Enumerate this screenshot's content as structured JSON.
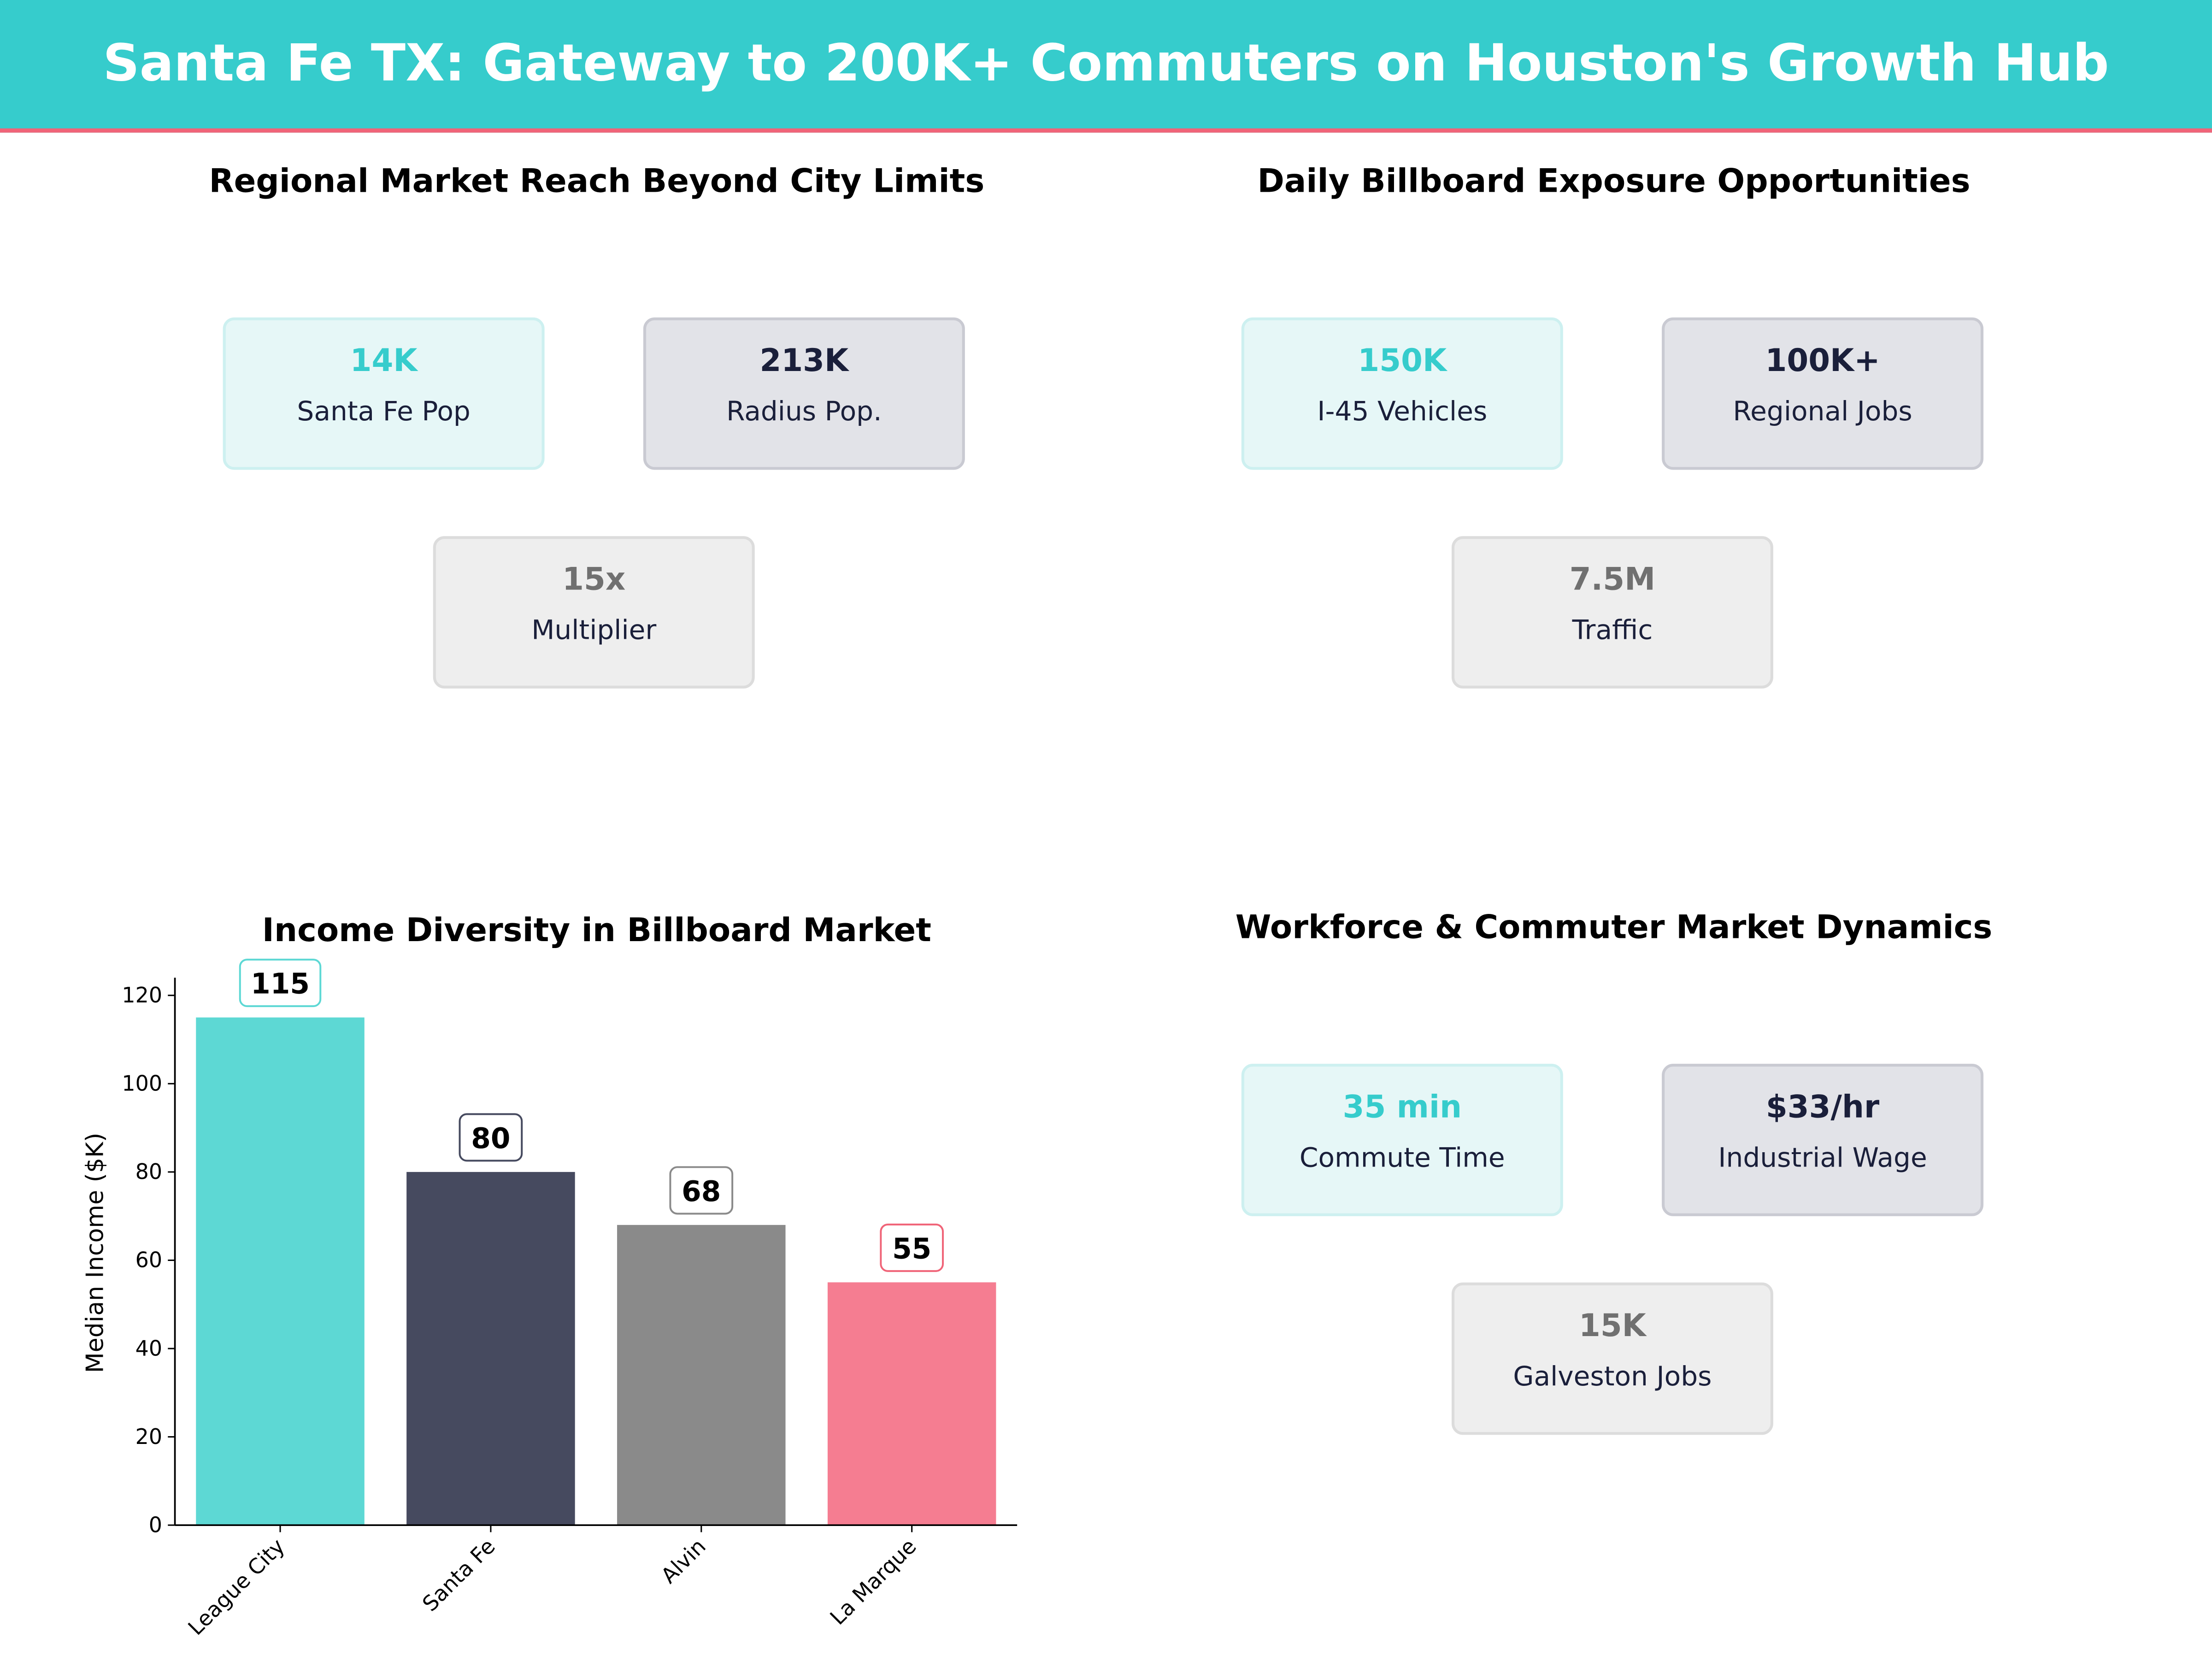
{
  "header": {
    "title": "Santa Fe TX: Gateway to 200K+ Commuters on Houston's Growth Hub"
  },
  "colors": {
    "banner": "#36cccc",
    "accent_line": "#f06478",
    "teal": "#5dd8d4",
    "navy": "#464a5f",
    "gray": "#8a8a8a",
    "pink": "#f57d91"
  },
  "panels": [
    {
      "title": "Regional Market Reach Beyond City Limits",
      "cards": [
        {
          "value": "14K",
          "label": "Santa Fe Pop"
        },
        {
          "value": "213K",
          "label": "Radius Pop."
        },
        {
          "value": "15x",
          "label": "Multiplier"
        }
      ]
    },
    {
      "title": "Daily Billboard Exposure Opportunities",
      "cards": [
        {
          "value": "150K",
          "label": "I-45 Vehicles"
        },
        {
          "value": "100K+",
          "label": "Regional Jobs"
        },
        {
          "value": "7.5M",
          "label": "Traffic"
        }
      ]
    },
    {
      "title": "Workforce & Commuter Market Dynamics",
      "cards": [
        {
          "value": "35 min",
          "label": "Commute Time"
        },
        {
          "value": "$33/hr",
          "label": "Industrial Wage"
        },
        {
          "value": "15K",
          "label": "Galveston Jobs"
        }
      ]
    }
  ],
  "chart_data": {
    "type": "bar",
    "title": "Income Diversity in Billboard Market",
    "xlabel": "",
    "ylabel": "Median Income ($K)",
    "categories": [
      "League City",
      "Santa Fe",
      "Alvin",
      "La Marque"
    ],
    "values": [
      115,
      80,
      68,
      55
    ],
    "value_labels": [
      "115",
      "80",
      "68",
      "55"
    ],
    "bar_colors": [
      "#5dd8d4",
      "#464a5f",
      "#8a8a8a",
      "#f57d91"
    ],
    "label_border_colors": [
      "#5dd8d4",
      "#464a5f",
      "#8a8a8a",
      "#f06478"
    ],
    "ylim": [
      0,
      124
    ],
    "yticks": [
      0,
      20,
      40,
      60,
      80,
      100,
      120
    ],
    "ytick_labels": [
      "0",
      "20",
      "40",
      "60",
      "80",
      "100",
      "120"
    ],
    "grid": false
  }
}
